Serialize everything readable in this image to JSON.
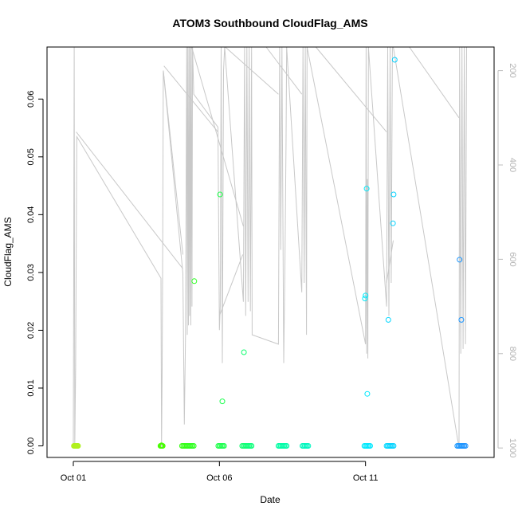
{
  "chart_data": {
    "type": "scatter",
    "title": "ATOM3 Southbound CloudFlag_AMS",
    "xlabel": "Date",
    "ylabel": "CloudFlag_AMS",
    "x_unit": "days since Oct 01",
    "xlim": [
      -0.9,
      14.4
    ],
    "ylim": [
      -0.002,
      0.069
    ],
    "x_ticks": [
      {
        "x": 0,
        "label": "Oct 01"
      },
      {
        "x": 5,
        "label": "Oct 06"
      },
      {
        "x": 10,
        "label": "Oct 11"
      }
    ],
    "y_ticks": [
      0.0,
      0.01,
      0.02,
      0.03,
      0.04,
      0.05,
      0.06
    ],
    "y_tick_labels": [
      "0.00",
      "0.01",
      "0.02",
      "0.03",
      "0.04",
      "0.05",
      "0.06"
    ],
    "right_axis": {
      "description": "secondary inverted pressure axis (grey), drawn with flight-track line",
      "lim": [
        1020,
        150
      ],
      "ticks": [
        200,
        400,
        600,
        800,
        1000
      ],
      "tick_labels": [
        "200",
        "400",
        "600",
        "800",
        "1000"
      ],
      "color": "#bdbdbd"
    },
    "pressure_track": [
      [
        0.0,
        1000
      ],
      [
        0.03,
        150
      ],
      [
        0.05,
        1000
      ],
      [
        0.08,
        830
      ],
      [
        0.12,
        340
      ],
      [
        3.0,
        640
      ],
      [
        3.02,
        1000
      ],
      [
        3.04,
        830
      ],
      [
        3.06,
        560
      ],
      [
        3.08,
        200
      ],
      [
        3.75,
        630
      ],
      [
        3.8,
        950
      ],
      [
        3.84,
        760
      ],
      [
        3.88,
        150
      ],
      [
        3.9,
        760
      ],
      [
        3.92,
        150
      ],
      [
        3.94,
        740
      ],
      [
        3.96,
        150
      ],
      [
        3.98,
        720
      ],
      [
        4.0,
        150
      ],
      [
        4.02,
        740
      ],
      [
        4.04,
        150
      ],
      [
        4.06,
        700
      ],
      [
        4.08,
        150
      ],
      [
        4.12,
        250
      ],
      [
        4.95,
        320
      ],
      [
        5.0,
        750
      ],
      [
        5.03,
        700
      ],
      [
        5.06,
        150
      ],
      [
        5.1,
        820
      ],
      [
        5.14,
        200
      ],
      [
        5.18,
        150
      ],
      [
        5.82,
        690
      ],
      [
        5.86,
        150
      ],
      [
        5.9,
        720
      ],
      [
        5.94,
        150
      ],
      [
        5.98,
        690
      ],
      [
        6.02,
        150
      ],
      [
        6.06,
        710
      ],
      [
        6.1,
        150
      ],
      [
        6.12,
        760
      ],
      [
        7.02,
        780
      ],
      [
        7.06,
        150
      ],
      [
        7.1,
        580
      ],
      [
        7.14,
        150
      ],
      [
        7.2,
        820
      ],
      [
        7.24,
        620
      ],
      [
        7.28,
        360
      ],
      [
        7.3,
        150
      ],
      [
        7.82,
        670
      ],
      [
        7.86,
        150
      ],
      [
        7.9,
        650
      ],
      [
        7.94,
        150
      ],
      [
        7.98,
        760
      ],
      [
        8.0,
        150
      ],
      [
        10.0,
        780
      ],
      [
        10.02,
        150
      ],
      [
        10.04,
        800
      ],
      [
        10.06,
        430
      ],
      [
        10.08,
        810
      ],
      [
        10.1,
        150
      ],
      [
        10.72,
        700
      ],
      [
        10.76,
        150
      ],
      [
        10.8,
        720
      ],
      [
        10.84,
        150
      ],
      [
        10.88,
        650
      ],
      [
        10.92,
        150
      ],
      [
        10.95,
        150
      ],
      [
        13.2,
        1000
      ],
      [
        13.22,
        150
      ],
      [
        13.26,
        800
      ],
      [
        13.3,
        150
      ],
      [
        13.34,
        790
      ],
      [
        13.38,
        150
      ],
      [
        13.42,
        780
      ],
      [
        13.46,
        150
      ]
    ],
    "background_track_segments": [
      [
        [
          0.1,
          330
        ],
        [
          3.75,
          620
        ]
      ],
      [
        [
          3.08,
          200
        ],
        [
          3.75,
          590
        ]
      ],
      [
        [
          3.1,
          190
        ],
        [
          4.95,
          330
        ]
      ],
      [
        [
          4.05,
          150
        ],
        [
          5.82,
          530
        ]
      ],
      [
        [
          5.2,
          150
        ],
        [
          7.02,
          250
        ]
      ],
      [
        [
          6.6,
          150
        ],
        [
          7.82,
          250
        ]
      ],
      [
        [
          8.3,
          150
        ],
        [
          10.72,
          330
        ]
      ],
      [
        [
          11.5,
          150
        ],
        [
          13.2,
          300
        ]
      ],
      [
        [
          5.0,
          720
        ],
        [
          5.8,
          590
        ]
      ],
      [
        [
          10.72,
          650
        ],
        [
          10.95,
          560
        ]
      ]
    ],
    "series": [
      {
        "name": "CloudFlag_AMS",
        "points": [
          [
            0.02,
            0
          ],
          [
            0.04,
            0
          ],
          [
            0.06,
            0
          ],
          [
            0.08,
            0
          ],
          [
            0.1,
            0
          ],
          [
            0.12,
            0
          ],
          [
            0.14,
            0
          ],
          [
            0.16,
            0
          ],
          [
            2.98,
            0
          ],
          [
            3.0,
            0
          ],
          [
            3.02,
            0
          ],
          [
            3.04,
            0
          ],
          [
            3.06,
            0
          ],
          [
            3.02,
            0.0001
          ],
          [
            3.72,
            0
          ],
          [
            3.76,
            0
          ],
          [
            3.8,
            0
          ],
          [
            3.84,
            0
          ],
          [
            3.88,
            0
          ],
          [
            3.92,
            0
          ],
          [
            3.96,
            0
          ],
          [
            4.0,
            0
          ],
          [
            4.04,
            0
          ],
          [
            4.08,
            0
          ],
          [
            4.12,
            0
          ],
          [
            4.14,
            0.0285
          ],
          [
            4.96,
            0
          ],
          [
            5.0,
            0
          ],
          [
            5.04,
            0
          ],
          [
            5.08,
            0
          ],
          [
            5.12,
            0
          ],
          [
            5.16,
            0
          ],
          [
            5.02,
            0.0435
          ],
          [
            5.1,
            0.0077
          ],
          [
            5.78,
            0
          ],
          [
            5.82,
            0
          ],
          [
            5.86,
            0
          ],
          [
            5.9,
            0
          ],
          [
            5.94,
            0
          ],
          [
            5.98,
            0
          ],
          [
            6.02,
            0
          ],
          [
            6.06,
            0
          ],
          [
            6.1,
            0
          ],
          [
            5.84,
            0.0162
          ],
          [
            7.02,
            0
          ],
          [
            7.06,
            0
          ],
          [
            7.1,
            0
          ],
          [
            7.14,
            0
          ],
          [
            7.18,
            0
          ],
          [
            7.22,
            0
          ],
          [
            7.26,
            0
          ],
          [
            7.3,
            0
          ],
          [
            7.84,
            0
          ],
          [
            7.88,
            0
          ],
          [
            7.92,
            0
          ],
          [
            7.96,
            0
          ],
          [
            8.0,
            0
          ],
          [
            8.04,
            0
          ],
          [
            9.96,
            0
          ],
          [
            10.0,
            0
          ],
          [
            10.04,
            0
          ],
          [
            10.08,
            0
          ],
          [
            10.12,
            0
          ],
          [
            10.16,
            0
          ],
          [
            9.98,
            0.0255
          ],
          [
            10.0,
            0.026
          ],
          [
            10.04,
            0.0445
          ],
          [
            10.06,
            0.009
          ],
          [
            10.72,
            0
          ],
          [
            10.76,
            0
          ],
          [
            10.8,
            0
          ],
          [
            10.84,
            0
          ],
          [
            10.88,
            0
          ],
          [
            10.92,
            0
          ],
          [
            10.96,
            0
          ],
          [
            10.78,
            0.0218
          ],
          [
            10.94,
            0.0385
          ],
          [
            10.96,
            0.0435
          ],
          [
            11.0,
            0.0668
          ],
          [
            13.14,
            0
          ],
          [
            13.18,
            0
          ],
          [
            13.22,
            0
          ],
          [
            13.26,
            0
          ],
          [
            13.3,
            0
          ],
          [
            13.34,
            0
          ],
          [
            13.38,
            0
          ],
          [
            13.42,
            0
          ],
          [
            13.22,
            0.0322
          ],
          [
            13.28,
            0.0218
          ]
        ]
      }
    ],
    "colors": {
      "pressure_line": "#c8c8c8",
      "box": "#000000",
      "gradient_start": "#b4f01e",
      "gradient_mid1": "#3cff00",
      "gradient_mid2": "#00ff9a",
      "gradient_mid3": "#00e8ff",
      "gradient_end": "#1e90ff"
    }
  }
}
